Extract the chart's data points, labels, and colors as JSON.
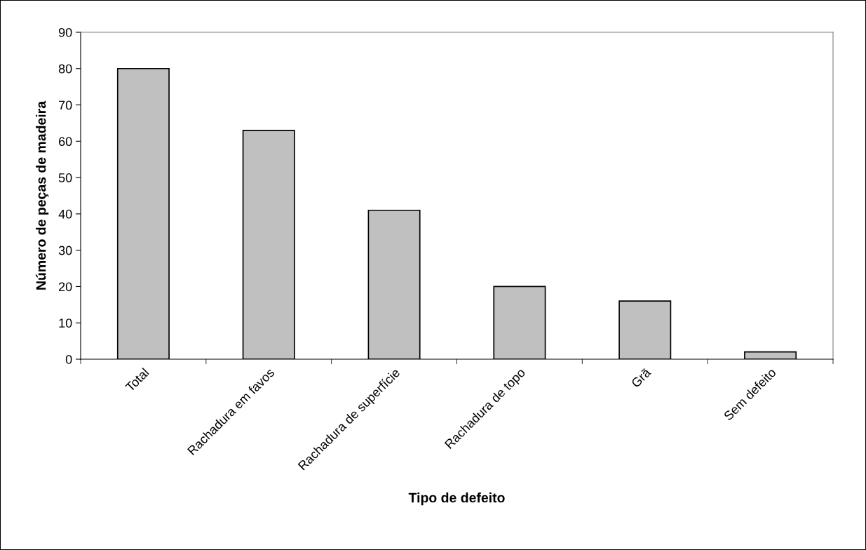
{
  "chart_data": {
    "type": "bar",
    "xlabel": "Tipo de defeito",
    "ylabel": "Número de peças de madeira",
    "categories": [
      "Total",
      "Rachadura em favos",
      "Rachadura de superfície",
      "Rachadura de topo",
      "Grã",
      "Sem defeito"
    ],
    "values": [
      80,
      63,
      41,
      20,
      16,
      2
    ],
    "color": "#c0c0c0",
    "ylim": [
      0,
      90
    ],
    "yticks": [
      0,
      10,
      20,
      30,
      40,
      50,
      60,
      70,
      80,
      90
    ],
    "grid": false
  }
}
